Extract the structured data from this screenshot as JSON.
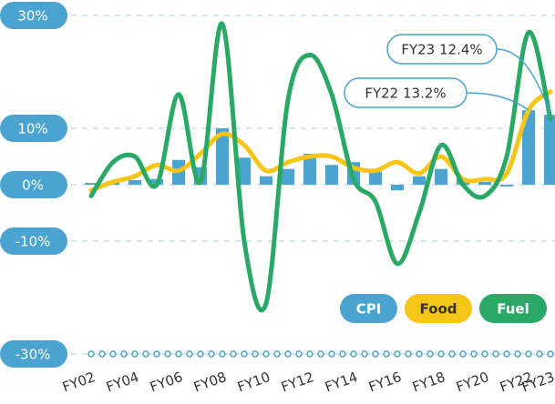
{
  "chart_data": {
    "type": "bar_line",
    "categories": [
      "FY02",
      null,
      "FY04",
      null,
      "FY06",
      null,
      "FY08",
      null,
      "FY10",
      null,
      "FY12",
      null,
      "FY14",
      null,
      "FY16",
      null,
      "FY18",
      null,
      "FY20",
      null,
      "FY22",
      "FY23"
    ],
    "series": [
      {
        "name": "CPI",
        "type": "bar",
        "color": "#4aa3d0",
        "values": [
          0.3,
          0.6,
          0.8,
          1,
          4.4,
          3.1,
          10,
          4.8,
          1.5,
          2.8,
          5.5,
          3.5,
          4,
          2.3,
          -1,
          1.5,
          2.8,
          1,
          0.5,
          -0.3,
          13.2,
          12.4
        ]
      },
      {
        "name": "Food",
        "type": "line",
        "color": "#f5c518",
        "values": [
          -1,
          0.5,
          1.5,
          3.5,
          2.5,
          5.5,
          9,
          7,
          2.5,
          4,
          5,
          5,
          3,
          2.5,
          4,
          2,
          5,
          1,
          1,
          2,
          13.2,
          16.5
        ]
      },
      {
        "name": "Fuel",
        "type": "line",
        "color": "#2aa866",
        "values": [
          -2,
          4,
          5,
          0,
          16,
          0.5,
          28.5,
          -10,
          -21,
          15,
          23,
          16,
          1,
          -3,
          -14,
          -5,
          7,
          0,
          -2,
          5,
          27,
          11.7
        ]
      }
    ],
    "ylim": [
      -30,
      30
    ],
    "yticks": [
      {
        "value": 30,
        "label": "30%"
      },
      {
        "value": 10,
        "label": "10%"
      },
      {
        "value": 0,
        "label": "0%"
      },
      {
        "value": -10,
        "label": "-10%"
      },
      {
        "value": -30,
        "label": "-30%"
      }
    ],
    "grid": true,
    "legend": "bottom-right",
    "annotations": [
      {
        "text": "FY23 12.4%"
      },
      {
        "text": "FY22 13.2%"
      }
    ]
  }
}
